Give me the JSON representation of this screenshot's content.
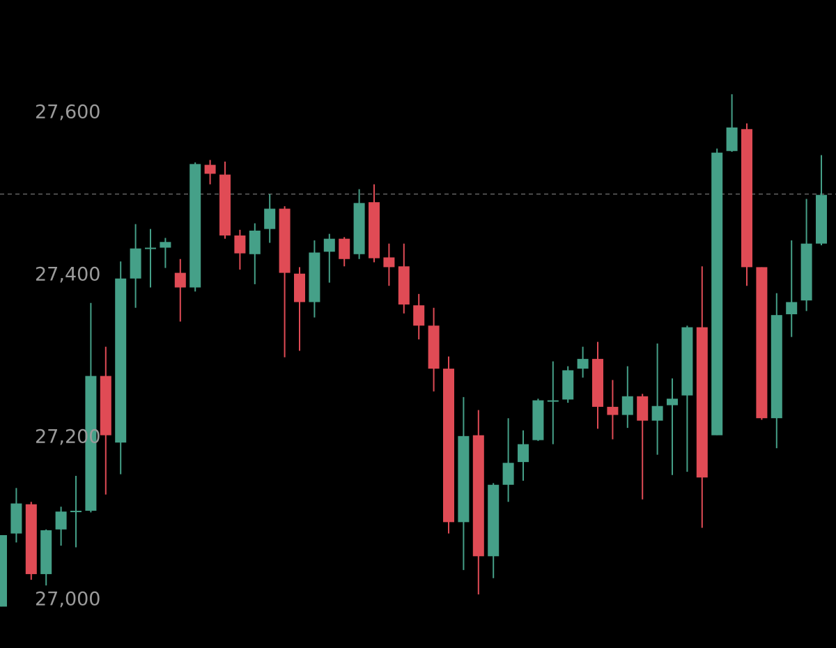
{
  "chart_data": {
    "type": "candlestick",
    "up_color": "#45a088",
    "down_color": "#e04b55",
    "price_line": 27500,
    "price_line_color": "#8a8a8a",
    "ylim": [
      26941,
      27739
    ],
    "yticks": [
      {
        "value": 27000,
        "label": "27,000"
      },
      {
        "value": 27200,
        "label": "27,200"
      },
      {
        "value": 27400,
        "label": "27,400"
      },
      {
        "value": 27600,
        "label": "27,600"
      }
    ],
    "open": [
      26992,
      27082,
      27118,
      27032,
      27087,
      27109,
      27110,
      27276,
      27194,
      27396,
      27433,
      27434,
      27403,
      27385,
      27536,
      27524,
      27449,
      27426,
      27457,
      27482,
      27402,
      27367,
      27429,
      27445,
      27426,
      27490,
      27422,
      27411,
      27363,
      27338,
      27285,
      27096,
      27203,
      27054,
      27142,
      27170,
      27197,
      27245,
      27247,
      27285,
      27297,
      27238,
      27228,
      27251,
      27221,
      27240,
      27252,
      27336,
      27203,
      27553,
      27580,
      27410,
      27224,
      27352,
      27369,
      27439
    ],
    "high": [
      27080,
      27138,
      27121,
      27087,
      27115,
      27153,
      27366,
      27312,
      27417,
      27463,
      27457,
      27446,
      27420,
      27539,
      27542,
      27540,
      27456,
      27464,
      27500,
      27485,
      27410,
      27443,
      27451,
      27447,
      27506,
      27512,
      27439,
      27439,
      27377,
      27360,
      27300,
      27250,
      27234,
      27144,
      27224,
      27209,
      27248,
      27294,
      27288,
      27312,
      27318,
      27271,
      27288,
      27254,
      27316,
      27273,
      27338,
      27411,
      27556,
      27623,
      27587,
      27410,
      27378,
      27443,
      27494,
      27548
    ],
    "low": [
      26992,
      27071,
      27025,
      27018,
      27067,
      27065,
      27108,
      27130,
      27155,
      27360,
      27385,
      27409,
      27343,
      27380,
      27512,
      27445,
      27407,
      27389,
      27440,
      27299,
      27307,
      27348,
      27391,
      27411,
      27420,
      27416,
      27387,
      27353,
      27321,
      27257,
      27082,
      27037,
      27007,
      27027,
      27121,
      27147,
      27196,
      27192,
      27243,
      27274,
      27211,
      27198,
      27212,
      27124,
      27179,
      27154,
      27158,
      27089,
      27203,
      27552,
      27387,
      27222,
      27187,
      27324,
      27356,
      27437
    ],
    "close": [
      27080,
      27119,
      27032,
      27086,
      27109,
      27110,
      27276,
      27203,
      27396,
      27433,
      27434,
      27441,
      27385,
      27537,
      27525,
      27449,
      27427,
      27455,
      27482,
      27403,
      27367,
      27428,
      27445,
      27420,
      27489,
      27421,
      27410,
      27364,
      27338,
      27285,
      27096,
      27202,
      27054,
      27142,
      27169,
      27192,
      27246,
      27246,
      27283,
      27297,
      27238,
      27228,
      27251,
      27221,
      27239,
      27248,
      27336,
      27151,
      27551,
      27582,
      27410,
      27224,
      27351,
      27367,
      27439,
      27499
    ]
  }
}
